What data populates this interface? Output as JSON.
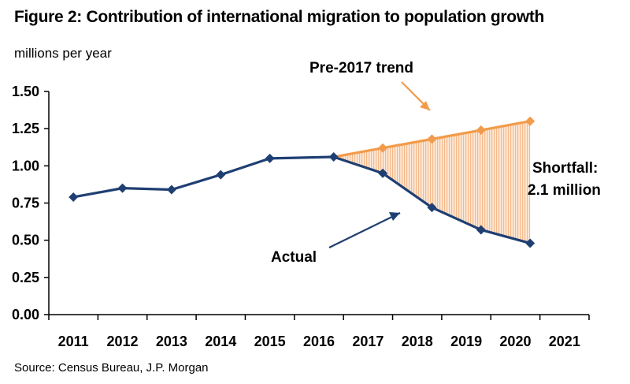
{
  "chart_data": {
    "type": "line",
    "title": "Figure 2: Contribution of international migration to population growth",
    "ylabel": "millions per year",
    "source": "Source: Census Bureau, J.P. Morgan",
    "categories": [
      "2011",
      "2012",
      "2013",
      "2014",
      "2015",
      "2016",
      "2017",
      "2018",
      "2019",
      "2020",
      "2021"
    ],
    "ylim": [
      0,
      1.5
    ],
    "yticks": [
      "0.00",
      "0.25",
      "0.50",
      "0.75",
      "1.00",
      "1.25",
      "1.50"
    ],
    "grid": false,
    "series": [
      {
        "name": "Actual",
        "color": "#1f3f73",
        "points": [
          {
            "x": 2011,
            "y": 0.79
          },
          {
            "x": 2012,
            "y": 0.85
          },
          {
            "x": 2013,
            "y": 0.84
          },
          {
            "x": 2014,
            "y": 0.94
          },
          {
            "x": 2015,
            "y": 1.05
          },
          {
            "x": 2016.3,
            "y": 1.06
          },
          {
            "x": 2017.3,
            "y": 0.95
          },
          {
            "x": 2018.3,
            "y": 0.72
          },
          {
            "x": 2019.3,
            "y": 0.57
          },
          {
            "x": 2020.3,
            "y": 0.48
          }
        ]
      },
      {
        "name": "Pre-2017 trend",
        "color": "#f29b4a",
        "points": [
          {
            "x": 2016.3,
            "y": 1.06
          },
          {
            "x": 2017.3,
            "y": 1.12
          },
          {
            "x": 2018.3,
            "y": 1.18
          },
          {
            "x": 2019.3,
            "y": 1.24
          },
          {
            "x": 2020.3,
            "y": 1.3
          }
        ]
      }
    ],
    "annotations": {
      "trend_label": "Pre-2017 trend",
      "actual_label": "Actual",
      "shortfall_line1": "Shortfall:",
      "shortfall_line2": "2.1 million"
    },
    "shaded_fill": "#fcd9bb"
  }
}
